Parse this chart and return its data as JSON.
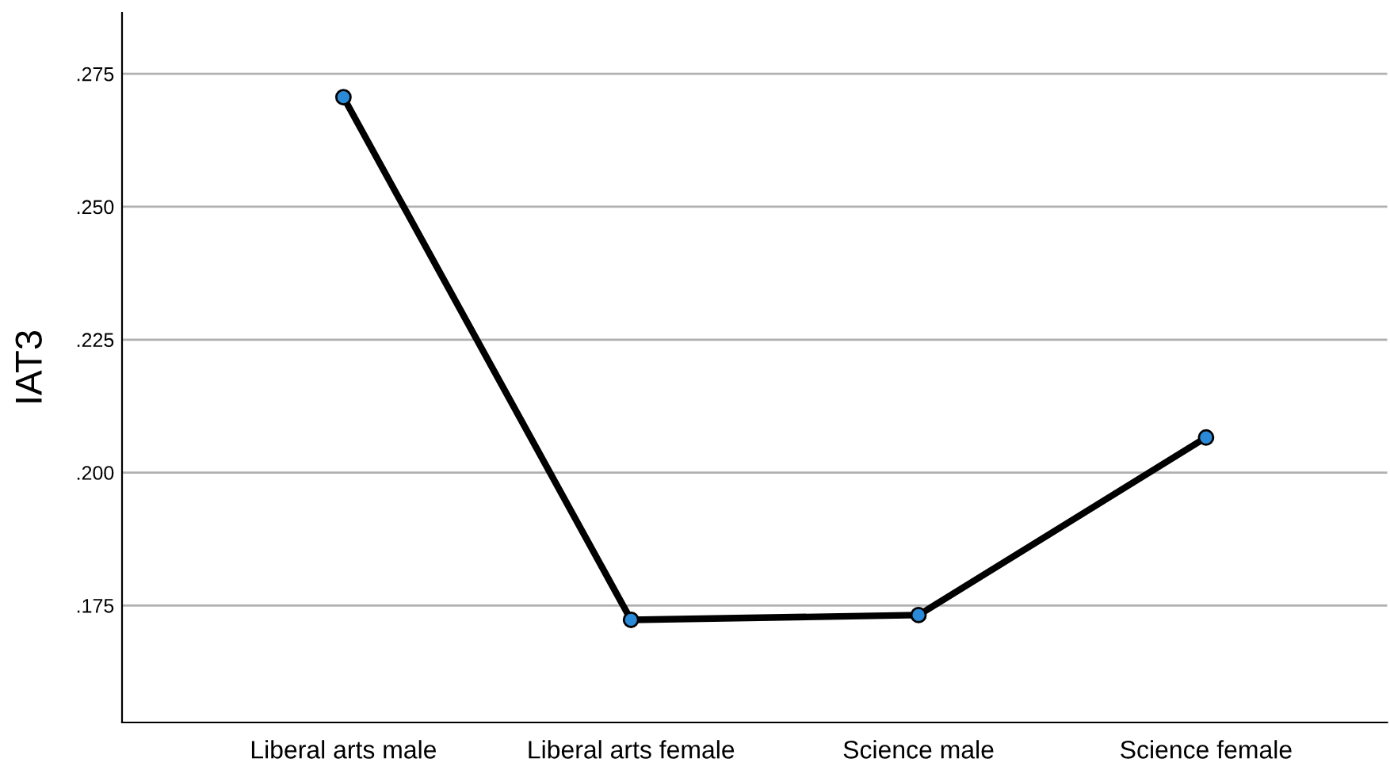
{
  "chart_data": {
    "type": "line",
    "ylabel": "IAT3",
    "categories": [
      "Liberal arts male",
      "Liberal arts female",
      "Science male",
      "Science female"
    ],
    "series": [
      {
        "color": "#000000",
        "values": [
          0.2706,
          0.1723,
          0.1732,
          0.2066
        ]
      }
    ],
    "marker": "circle",
    "line_style": "solid",
    "ylim": [
      0.153,
      0.2865
    ],
    "yticks": [
      {
        "value": 0.175,
        "label": ".175"
      },
      {
        "value": 0.2,
        "label": ".200"
      },
      {
        "value": 0.225,
        "label": ".225"
      },
      {
        "value": 0.25,
        "label": ".250"
      },
      {
        "value": 0.275,
        "label": ".275"
      }
    ],
    "grid": "y",
    "legend": false
  }
}
